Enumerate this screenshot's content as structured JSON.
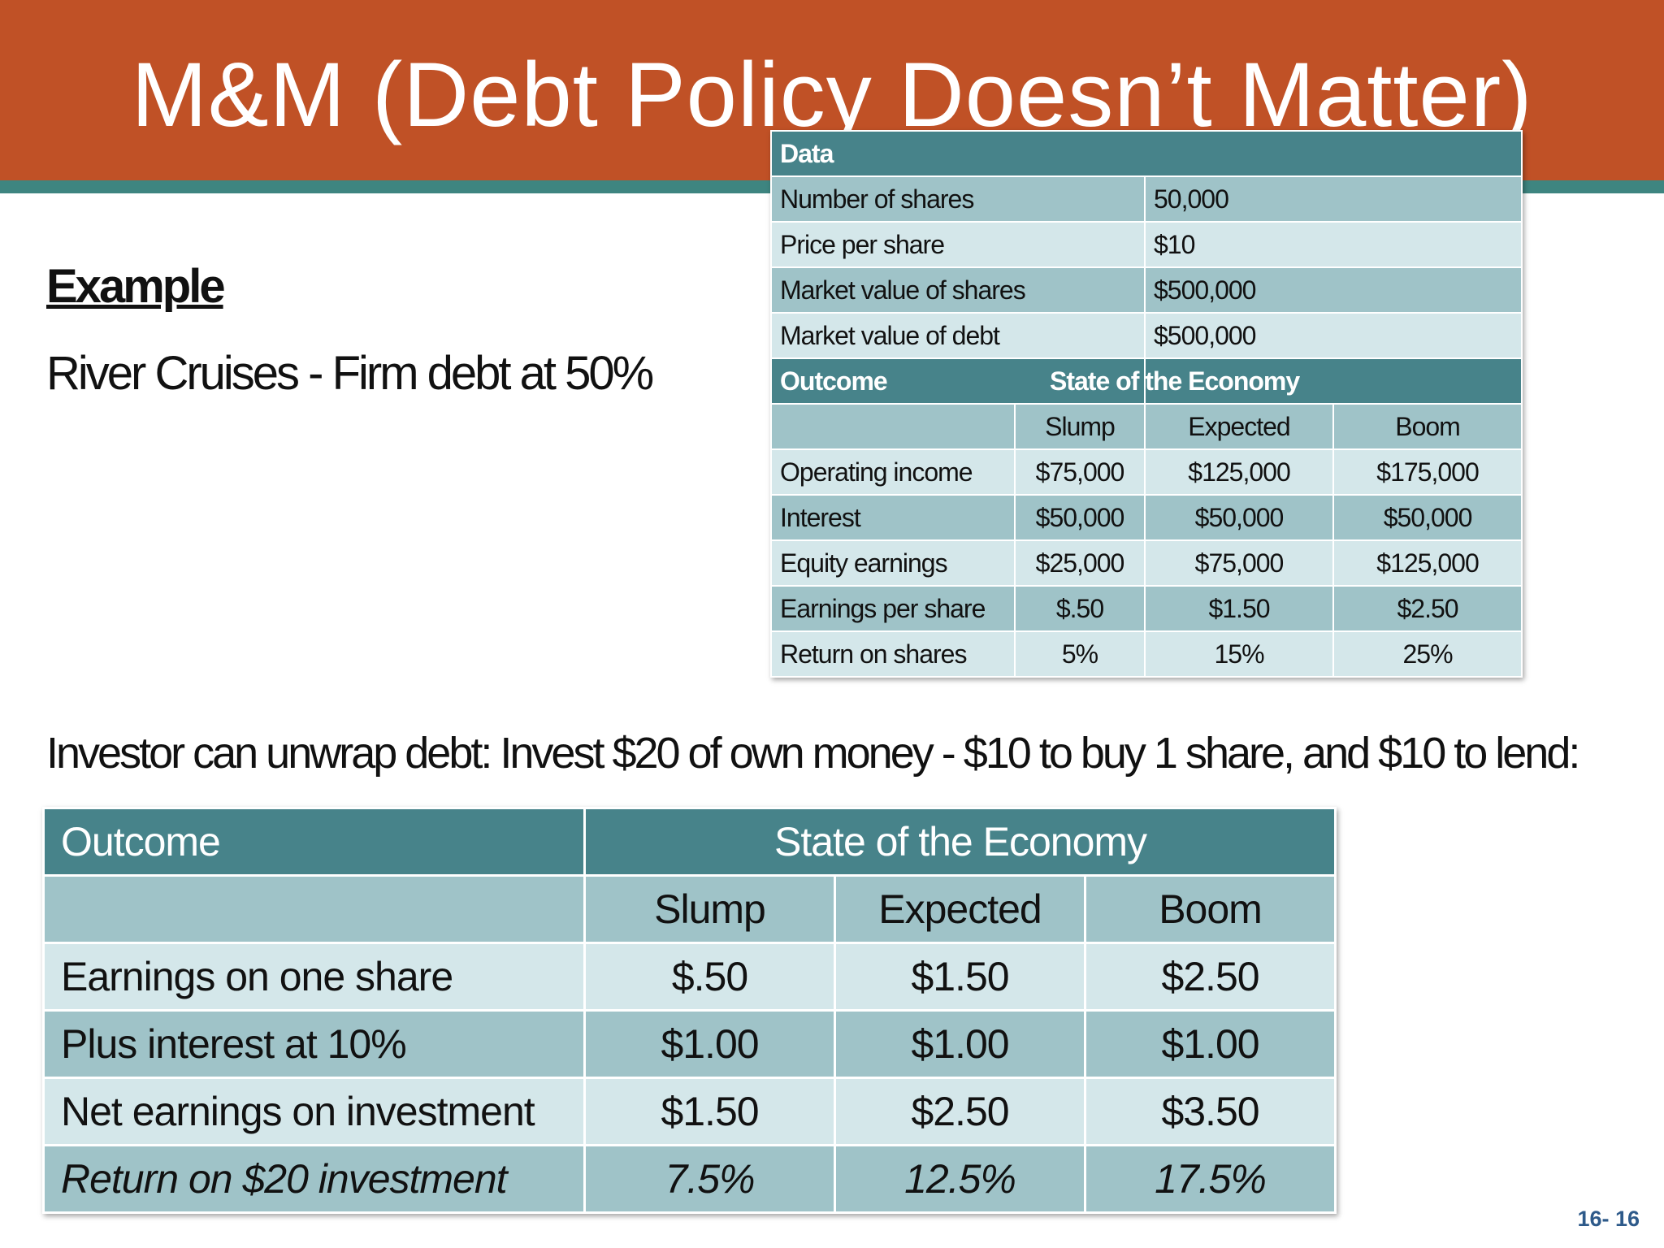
{
  "slide": {
    "title": "M&M (Debt Policy Doesn’t Matter)",
    "example_heading": "Example",
    "subtitle": "River Cruises -  Firm debt at 50%",
    "investor_text": "Investor can unwrap debt: Invest $20 of own money - $10  to buy 1 share, and $10 to lend:",
    "page_number": "16- 16"
  },
  "colors": {
    "title_bar": "#c05126",
    "accent_stripe": "#3e8580",
    "table_header": "#47838a",
    "table_row_dark": "#9fc3c8",
    "table_row_light": "#d4e7ea"
  },
  "table1": {
    "data_header": "Data",
    "data_rows": [
      {
        "label": "Number of shares",
        "value": "50,000"
      },
      {
        "label": "Price per share",
        "value": "$10"
      },
      {
        "label": "Market value of shares",
        "value": "$500,000"
      },
      {
        "label": "Market value of debt",
        "value": "$500,000"
      }
    ],
    "outcome_header": "Outcome",
    "state_header": "State of the Economy",
    "columns": [
      "Slump",
      "Expected",
      "Boom"
    ],
    "rows": [
      {
        "label": "Operating income",
        "values": [
          "$75,000",
          "$125,000",
          "$175,000"
        ]
      },
      {
        "label": "Interest",
        "values": [
          "$50,000",
          "$50,000",
          "$50,000"
        ]
      },
      {
        "label": "Equity earnings",
        "values": [
          "$25,000",
          "$75,000",
          "$125,000"
        ]
      },
      {
        "label": "Earnings per share",
        "values": [
          "$.50",
          "$1.50",
          "$2.50"
        ]
      },
      {
        "label": "Return on shares",
        "values": [
          "5%",
          "15%",
          "25%"
        ]
      }
    ]
  },
  "table2": {
    "outcome_header": "Outcome",
    "state_header": "State of the Economy",
    "columns": [
      "Slump",
      "Expected",
      "Boom"
    ],
    "rows": [
      {
        "label": "Earnings on one share",
        "values": [
          "$.50",
          "$1.50",
          "$2.50"
        ]
      },
      {
        "label": "Plus interest at 10%",
        "values": [
          "$1.00",
          "$1.00",
          "$1.00"
        ]
      },
      {
        "label": "Net earnings on investment",
        "values": [
          "$1.50",
          "$2.50",
          "$3.50"
        ]
      },
      {
        "label": "Return on $20 investment",
        "values": [
          "7.5%",
          "12.5%",
          "17.5%"
        ]
      }
    ]
  }
}
